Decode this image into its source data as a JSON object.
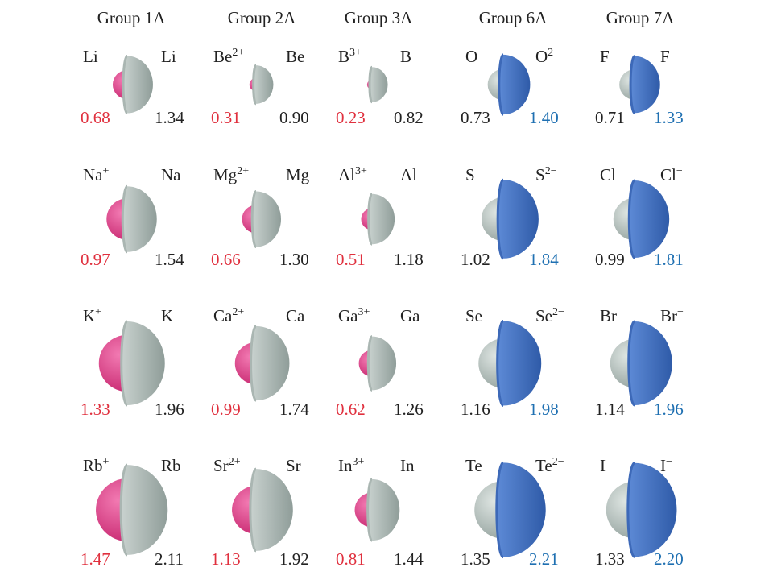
{
  "colors": {
    "cation_sphere": "#e2448c",
    "atom_gray": "#b9c5c1",
    "anion_blue": "#4a7ac9",
    "cation_value": "#e0303e",
    "anion_value": "#1f70b2",
    "atom_value": "#222222"
  },
  "unit_note": "",
  "groups": [
    {
      "header": "Group 1A",
      "kind": "cation",
      "rows": [
        {
          "ion": "Li",
          "ion_charge": "+",
          "atom": "Li",
          "ion_radius": "0.68",
          "atom_radius": "1.34"
        },
        {
          "ion": "Na",
          "ion_charge": "+",
          "atom": "Na",
          "ion_radius": "0.97",
          "atom_radius": "1.54"
        },
        {
          "ion": "K",
          "ion_charge": "+",
          "atom": "K",
          "ion_radius": "1.33",
          "atom_radius": "1.96"
        },
        {
          "ion": "Rb",
          "ion_charge": "+",
          "atom": "Rb",
          "ion_radius": "1.47",
          "atom_radius": "2.11"
        }
      ]
    },
    {
      "header": "Group 2A",
      "kind": "cation",
      "rows": [
        {
          "ion": "Be",
          "ion_charge": "2+",
          "atom": "Be",
          "ion_radius": "0.31",
          "atom_radius": "0.90"
        },
        {
          "ion": "Mg",
          "ion_charge": "2+",
          "atom": "Mg",
          "ion_radius": "0.66",
          "atom_radius": "1.30"
        },
        {
          "ion": "Ca",
          "ion_charge": "2+",
          "atom": "Ca",
          "ion_radius": "0.99",
          "atom_radius": "1.74"
        },
        {
          "ion": "Sr",
          "ion_charge": "2+",
          "atom": "Sr",
          "ion_radius": "1.13",
          "atom_radius": "1.92"
        }
      ]
    },
    {
      "header": "Group 3A",
      "kind": "cation",
      "rows": [
        {
          "ion": "B",
          "ion_charge": "3+",
          "atom": "B",
          "ion_radius": "0.23",
          "atom_radius": "0.82"
        },
        {
          "ion": "Al",
          "ion_charge": "3+",
          "atom": "Al",
          "ion_radius": "0.51",
          "atom_radius": "1.18"
        },
        {
          "ion": "Ga",
          "ion_charge": "3+",
          "atom": "Ga",
          "ion_radius": "0.62",
          "atom_radius": "1.26"
        },
        {
          "ion": "In",
          "ion_charge": "3+",
          "atom": "In",
          "ion_radius": "0.81",
          "atom_radius": "1.44"
        }
      ]
    },
    {
      "header": "Group 6A",
      "kind": "anion",
      "rows": [
        {
          "ion": "O",
          "ion_charge": "2−",
          "atom": "O",
          "ion_radius": "1.40",
          "atom_radius": "0.73"
        },
        {
          "ion": "S",
          "ion_charge": "2−",
          "atom": "S",
          "ion_radius": "1.84",
          "atom_radius": "1.02"
        },
        {
          "ion": "Se",
          "ion_charge": "2−",
          "atom": "Se",
          "ion_radius": "1.98",
          "atom_radius": "1.16"
        },
        {
          "ion": "Te",
          "ion_charge": "2−",
          "atom": "Te",
          "ion_radius": "2.21",
          "atom_radius": "1.35"
        }
      ]
    },
    {
      "header": "Group 7A",
      "kind": "anion",
      "rows": [
        {
          "ion": "F",
          "ion_charge": "−",
          "atom": "F",
          "ion_radius": "1.33",
          "atom_radius": "0.71"
        },
        {
          "ion": "Cl",
          "ion_charge": "−",
          "atom": "Cl",
          "ion_radius": "1.81",
          "atom_radius": "0.99"
        },
        {
          "ion": "Br",
          "ion_charge": "−",
          "atom": "Br",
          "ion_radius": "1.96",
          "atom_radius": "1.14"
        },
        {
          "ion": "I",
          "ion_charge": "−",
          "atom": "I",
          "ion_radius": "2.20",
          "atom_radius": "1.33"
        }
      ]
    }
  ]
}
